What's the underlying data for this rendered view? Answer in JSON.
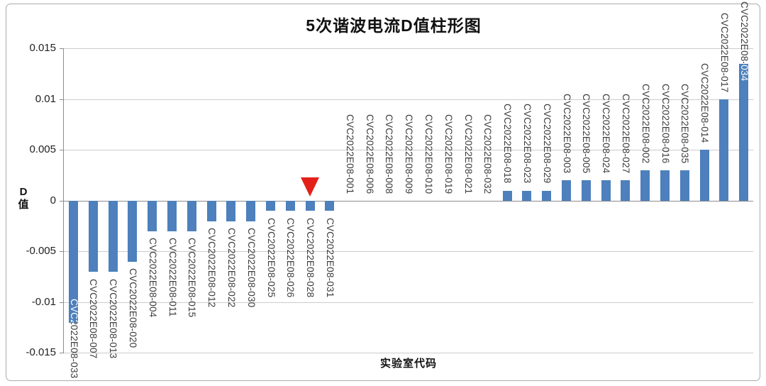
{
  "chart": {
    "title": "5次谐波电流D值柱形图",
    "x_axis_title": "实验室代码",
    "y_axis_title": [
      "D",
      "值"
    ]
  },
  "chart_data": {
    "type": "bar",
    "title": "5次谐波电流D值柱形图",
    "xlabel": "实验室代码",
    "ylabel": "D值",
    "ylim": [
      -0.015,
      0.015
    ],
    "ytick_labels": [
      "0.015",
      "0.01",
      "0.005",
      "0",
      "-0.005",
      "-0.01",
      "-0.015"
    ],
    "grid": true,
    "legend": "none",
    "bar_color": "#4d80bc",
    "categories": [
      "CVC2022E08-033",
      "CVC2022E08-007",
      "CVC2022E08-013",
      "CVC2022E08-020",
      "CVC2022E08-004",
      "CVC2022E08-011",
      "CVC2022E08-015",
      "CVC2022E08-012",
      "CVC2022E08-022",
      "CVC2022E08-030",
      "CVC2022E08-025",
      "CVC2022E08-026",
      "CVC2022E08-028",
      "CVC2022E08-031",
      "CVC2022E08-001",
      "CVC2022E08-006",
      "CVC2022E08-008",
      "CVC2022E08-009",
      "CVC2022E08-010",
      "CVC2022E08-019",
      "CVC2022E08-021",
      "CVC2022E08-032",
      "CVC2022E08-018",
      "CVC2022E08-023",
      "CVC2022E08-029",
      "CVC2022E08-003",
      "CVC2022E08-005",
      "CVC2022E08-024",
      "CVC2022E08-027",
      "CVC2022E08-002",
      "CVC2022E08-016",
      "CVC2022E08-035",
      "CVC2022E08-014",
      "CVC2022E08-017",
      "CVC2022E08-034"
    ],
    "values": [
      -0.012,
      -0.007,
      -0.007,
      -0.006,
      -0.003,
      -0.003,
      -0.003,
      -0.002,
      -0.002,
      -0.002,
      -0.001,
      -0.001,
      -0.001,
      -0.001,
      0,
      0,
      0,
      0,
      0,
      0,
      0,
      0,
      0.001,
      0.001,
      0.001,
      0.002,
      0.002,
      0.002,
      0.002,
      0.003,
      0.003,
      0.003,
      0.005,
      0.01,
      0.0135
    ],
    "annotation": {
      "shape": "red-inverted-triangle",
      "category": "CVC2022E08-028",
      "category_index": 12,
      "color": "#e32118"
    }
  }
}
